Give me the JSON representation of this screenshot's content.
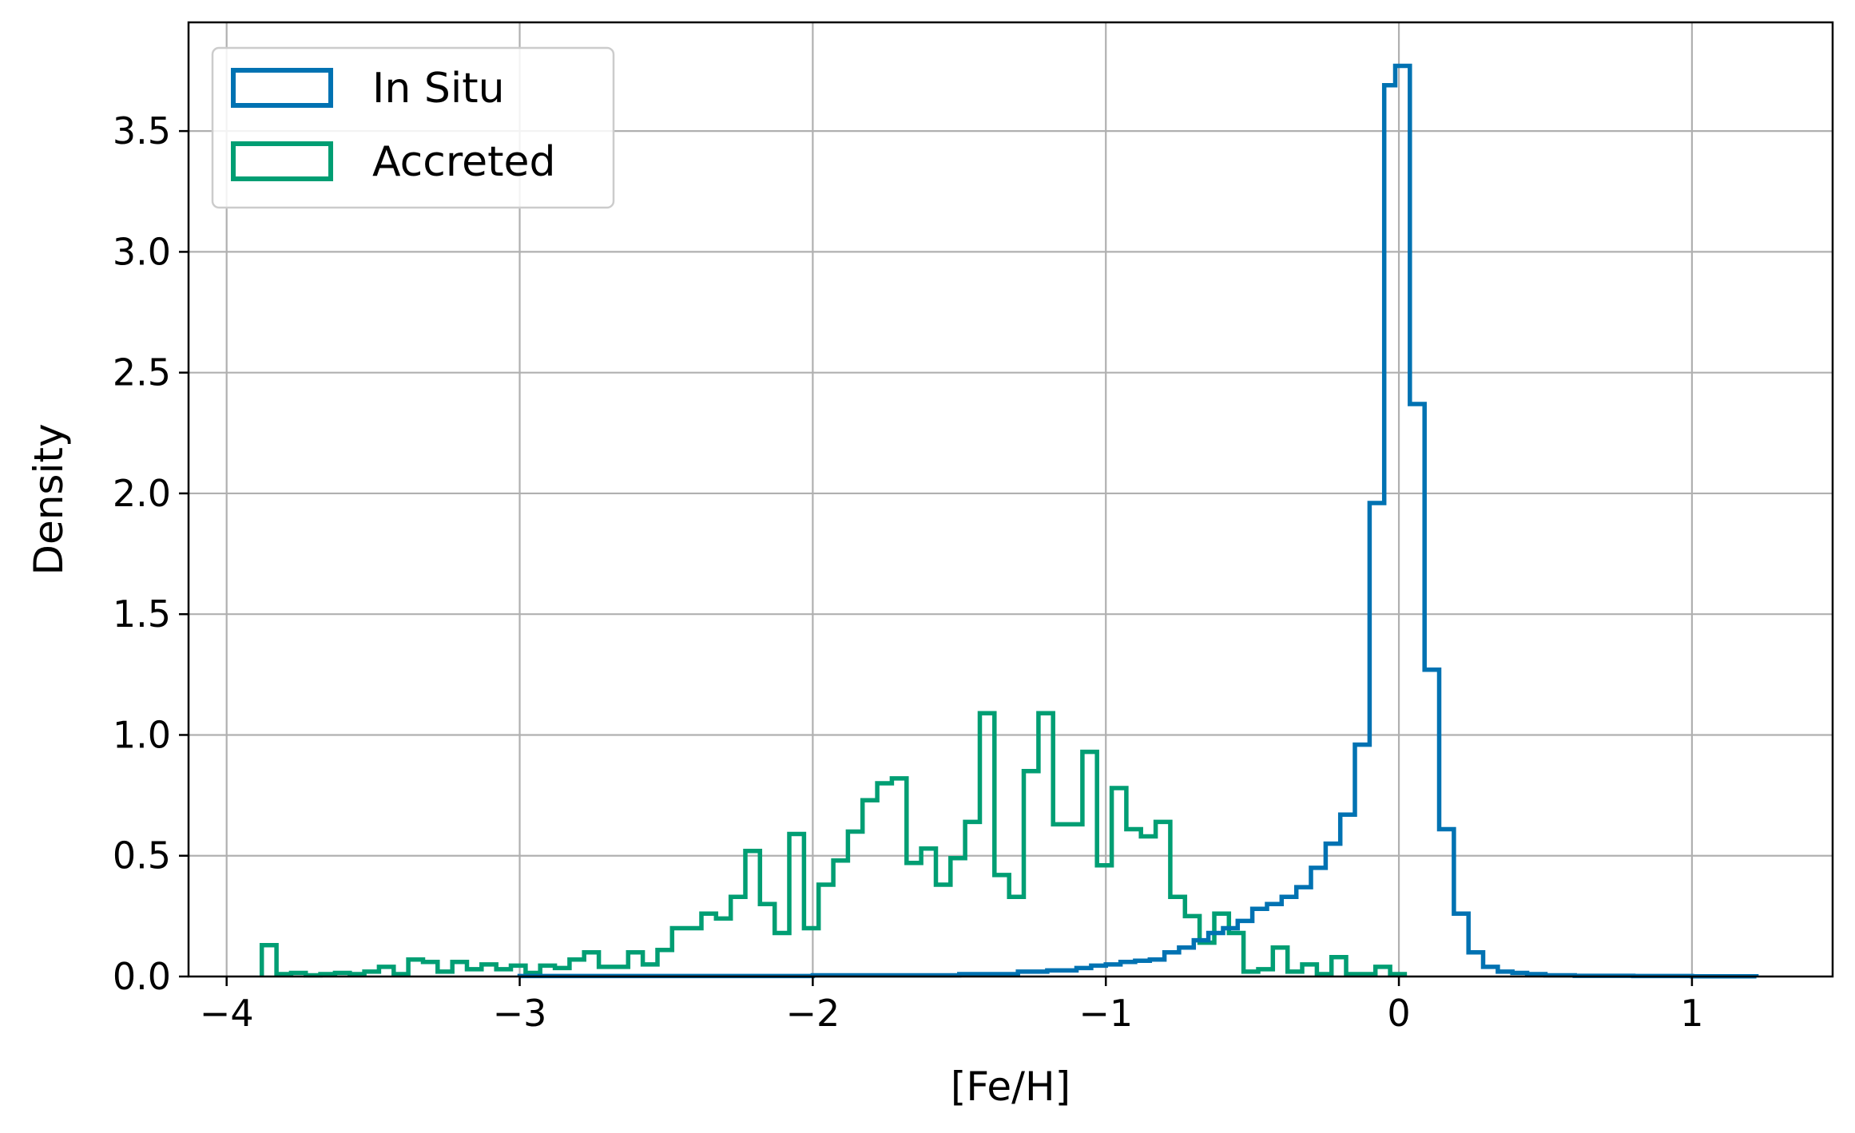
{
  "chart_data": {
    "type": "histogram",
    "xlabel": "[Fe/H]",
    "ylabel": "Density",
    "xlim": [
      -4.13,
      1.48
    ],
    "ylim": [
      0,
      3.95
    ],
    "x_ticks": [
      -4,
      -3,
      -2,
      -1,
      0,
      1
    ],
    "x_tick_labels": [
      "−4",
      "−3",
      "−2",
      "−1",
      "0",
      "1"
    ],
    "y_ticks": [
      0,
      0.5,
      1,
      1.5,
      2,
      2.5,
      3,
      3.5
    ],
    "y_tick_labels": [
      "0.0",
      "0.5",
      "1.0",
      "1.5",
      "2.0",
      "2.5",
      "3.0",
      "3.5"
    ],
    "grid": true,
    "legend_position": "top-left",
    "series": [
      {
        "name": "In Situ",
        "color": "#0072b2",
        "bin_edges": [
          -3.0,
          -2.0,
          -1.5,
          -1.3,
          -1.2,
          -1.1,
          -1.05,
          -1.0,
          -0.95,
          -0.9,
          -0.85,
          -0.8,
          -0.75,
          -0.7,
          -0.65,
          -0.6,
          -0.55,
          -0.5,
          -0.45,
          -0.4,
          -0.35,
          -0.3,
          -0.25,
          -0.2,
          -0.15,
          -0.1,
          -0.05,
          -0.0125,
          0.0375,
          0.0875,
          0.1375,
          0.1875,
          0.2375,
          0.2875,
          0.3375,
          0.3875,
          0.4375,
          0.5,
          0.6,
          0.8,
          1.0,
          1.22
        ],
        "values": [
          0.002,
          0.005,
          0.01,
          0.02,
          0.025,
          0.035,
          0.045,
          0.05,
          0.06,
          0.065,
          0.07,
          0.1,
          0.12,
          0.15,
          0.18,
          0.2,
          0.23,
          0.28,
          0.3,
          0.33,
          0.37,
          0.45,
          0.55,
          0.67,
          0.96,
          1.96,
          3.69,
          3.77,
          2.37,
          1.27,
          0.61,
          0.26,
          0.1,
          0.04,
          0.02,
          0.015,
          0.01,
          0.005,
          0.003,
          0.002,
          0.001
        ]
      },
      {
        "name": "Accreted",
        "color": "#009e73",
        "bin_edges": [
          -3.88,
          -3.83,
          -3.78,
          -3.73,
          -3.68,
          -3.63,
          -3.58,
          -3.53,
          -3.48,
          -3.43,
          -3.38,
          -3.33,
          -3.28,
          -3.23,
          -3.18,
          -3.13,
          -3.08,
          -3.03,
          -2.98,
          -2.93,
          -2.88,
          -2.83,
          -2.78,
          -2.73,
          -2.68,
          -2.63,
          -2.58,
          -2.53,
          -2.48,
          -2.43,
          -2.38,
          -2.33,
          -2.28,
          -2.23,
          -2.18,
          -2.13,
          -2.08,
          -2.03,
          -1.98,
          -1.93,
          -1.88,
          -1.83,
          -1.78,
          -1.73,
          -1.68,
          -1.63,
          -1.58,
          -1.53,
          -1.48,
          -1.43,
          -1.38,
          -1.33,
          -1.28,
          -1.23,
          -1.18,
          -1.13,
          -1.08,
          -1.03,
          -0.98,
          -0.93,
          -0.88,
          -0.83,
          -0.78,
          -0.73,
          -0.68,
          -0.63,
          -0.58,
          -0.53,
          -0.48,
          -0.43,
          -0.38,
          -0.33,
          -0.28,
          -0.23,
          -0.18,
          -0.13,
          -0.08,
          -0.03,
          0.02
        ],
        "values": [
          0.13,
          0.01,
          0.015,
          0.005,
          0.01,
          0.015,
          0.01,
          0.02,
          0.04,
          0.01,
          0.07,
          0.06,
          0.02,
          0.06,
          0.03,
          0.05,
          0.03,
          0.045,
          0.015,
          0.045,
          0.035,
          0.07,
          0.1,
          0.04,
          0.04,
          0.1,
          0.05,
          0.11,
          0.2,
          0.2,
          0.26,
          0.24,
          0.33,
          0.52,
          0.3,
          0.18,
          0.59,
          0.2,
          0.38,
          0.48,
          0.6,
          0.73,
          0.8,
          0.82,
          0.47,
          0.53,
          0.38,
          0.49,
          0.64,
          1.09,
          0.42,
          0.33,
          0.85,
          1.09,
          0.63,
          0.63,
          0.93,
          0.46,
          0.78,
          0.61,
          0.58,
          0.64,
          0.33,
          0.25,
          0.14,
          0.26,
          0.18,
          0.02,
          0.03,
          0.12,
          0.02,
          0.05,
          0.01,
          0.08,
          0.01,
          0.01,
          0.04,
          0.01
        ]
      }
    ]
  }
}
